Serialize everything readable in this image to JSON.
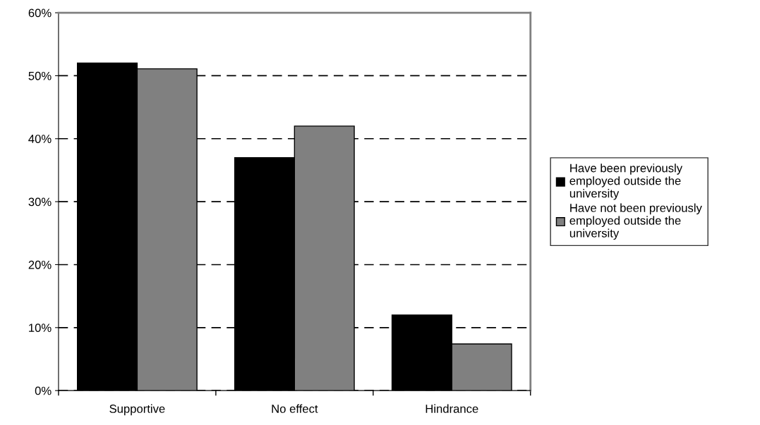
{
  "chart_data": {
    "type": "bar",
    "categories": [
      "Supportive",
      "No effect",
      "Hindrance"
    ],
    "series": [
      {
        "name": "Have been previously employed outside the university",
        "color": "#000000",
        "values": [
          52,
          37,
          12
        ]
      },
      {
        "name": "Have not been previously employed outside the university",
        "color": "#808080",
        "values": [
          51.1,
          42,
          7.4
        ]
      }
    ],
    "ylim": [
      0,
      60
    ],
    "yticks": [
      {
        "value": 0,
        "label": "0%"
      },
      {
        "value": 10,
        "label": "10%"
      },
      {
        "value": 20,
        "label": "20%"
      },
      {
        "value": 30,
        "label": "30%"
      },
      {
        "value": 40,
        "label": "40%"
      },
      {
        "value": 50,
        "label": "50%"
      },
      {
        "value": 60,
        "label": "60%"
      }
    ],
    "grid": "y",
    "legend": "right"
  }
}
